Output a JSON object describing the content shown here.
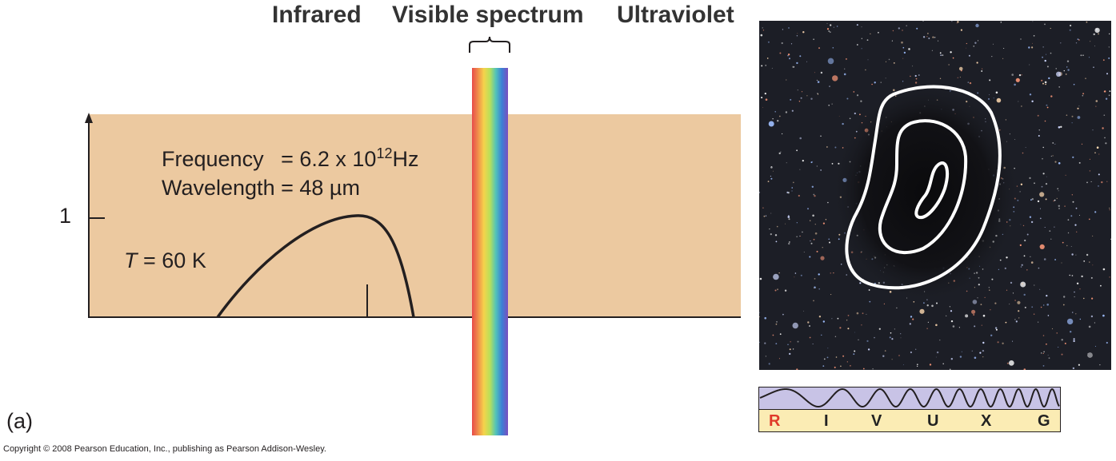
{
  "header": {
    "infrared": "Infrared",
    "visible": "Visible spectrum",
    "ultraviolet": "Ultraviolet"
  },
  "graph": {
    "frequency_label": "Frequency",
    "frequency_value": "= 6.2 x 10",
    "frequency_exp": "12",
    "frequency_unit": "Hz",
    "wavelength_label": "Wavelength = 48 µm",
    "temperature_var": "T",
    "temperature_value": "= 60 K",
    "y_tick": "1"
  },
  "panel_label": "(a)",
  "riv": {
    "letters": [
      "R",
      "I",
      "V",
      "U",
      "X",
      "G"
    ],
    "highlight": "R",
    "highlight_color": "#e03a2a",
    "wave_bg": "#c8c3e6",
    "letters_bg": "#fbecb4"
  },
  "colors": {
    "graph_bg": "#ecc9a0",
    "spectrum": [
      "#e74b4b",
      "#f08a4b",
      "#f5d34b",
      "#b8e05a",
      "#53c4b8",
      "#3b7fd6",
      "#7a4fbf"
    ]
  },
  "copyright": "Copyright © 2008 Pearson Education, Inc., publishing as Pearson Addison-Wesley."
}
